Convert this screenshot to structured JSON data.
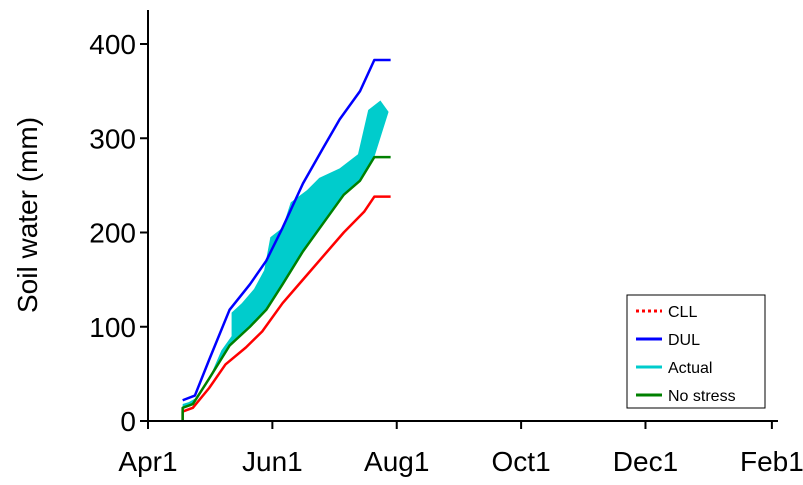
{
  "chart_data": {
    "type": "line",
    "title": "",
    "xlabel": "",
    "ylabel": "Soil water (mm)",
    "x_ticks": [
      "Apr1",
      "Jun1",
      "Aug1",
      "Oct1",
      "Dec1",
      "Feb1"
    ],
    "x_tick_days": [
      0,
      61,
      122,
      183,
      244,
      306
    ],
    "x_range_days": [
      0,
      309
    ],
    "y_ticks": [
      0,
      100,
      200,
      300,
      400
    ],
    "ylim": [
      0,
      400
    ],
    "grid": false,
    "legend_position": "bottom-right",
    "band": {
      "name": "Actual",
      "color": "#00cccc",
      "series_lower": "No stress",
      "upper_series": [
        {
          "day": 17,
          "value": 0
        },
        {
          "day": 17,
          "value": 18
        },
        {
          "day": 20,
          "value": 20
        },
        {
          "day": 24,
          "value": 25
        },
        {
          "day": 30,
          "value": 45
        },
        {
          "day": 36,
          "value": 75
        },
        {
          "day": 41,
          "value": 90
        },
        {
          "day": 41,
          "value": 115
        },
        {
          "day": 46,
          "value": 125
        },
        {
          "day": 52,
          "value": 140
        },
        {
          "day": 57,
          "value": 160
        },
        {
          "day": 60,
          "value": 195
        },
        {
          "day": 66,
          "value": 205
        },
        {
          "day": 70,
          "value": 232
        },
        {
          "day": 78,
          "value": 245
        },
        {
          "day": 84,
          "value": 258
        },
        {
          "day": 94,
          "value": 268
        },
        {
          "day": 103,
          "value": 283
        },
        {
          "day": 108,
          "value": 330
        },
        {
          "day": 114,
          "value": 340
        },
        {
          "day": 118,
          "value": 328
        }
      ]
    },
    "series": [
      {
        "name": "CLL",
        "color": "#ff0000",
        "style": "dotted",
        "points": [
          {
            "day": 17,
            "value": 0
          },
          {
            "day": 17,
            "value": 10
          },
          {
            "day": 22,
            "value": 14
          },
          {
            "day": 30,
            "value": 35
          },
          {
            "day": 38,
            "value": 60
          },
          {
            "day": 48,
            "value": 78
          },
          {
            "day": 56,
            "value": 95
          },
          {
            "day": 66,
            "value": 125
          },
          {
            "day": 76,
            "value": 150
          },
          {
            "day": 86,
            "value": 175
          },
          {
            "day": 96,
            "value": 200
          },
          {
            "day": 106,
            "value": 222
          },
          {
            "day": 111,
            "value": 238
          },
          {
            "day": 119,
            "value": 238
          }
        ]
      },
      {
        "name": "DUL",
        "color": "#0000ff",
        "style": "solid",
        "points": [
          {
            "day": 17,
            "value": 22
          },
          {
            "day": 23,
            "value": 27
          },
          {
            "day": 30,
            "value": 65
          },
          {
            "day": 40,
            "value": 118
          },
          {
            "day": 50,
            "value": 145
          },
          {
            "day": 58,
            "value": 170
          },
          {
            "day": 66,
            "value": 205
          },
          {
            "day": 76,
            "value": 252
          },
          {
            "day": 86,
            "value": 290
          },
          {
            "day": 94,
            "value": 320
          },
          {
            "day": 104,
            "value": 350
          },
          {
            "day": 111,
            "value": 383
          },
          {
            "day": 119,
            "value": 383
          }
        ]
      },
      {
        "name": "Actual",
        "color": "#00cccc",
        "style": "solid",
        "points": []
      },
      {
        "name": "No stress",
        "color": "#008000",
        "style": "solid",
        "points": [
          {
            "day": 17,
            "value": 0
          },
          {
            "day": 17,
            "value": 14
          },
          {
            "day": 22,
            "value": 18
          },
          {
            "day": 30,
            "value": 45
          },
          {
            "day": 40,
            "value": 80
          },
          {
            "day": 50,
            "value": 100
          },
          {
            "day": 58,
            "value": 118
          },
          {
            "day": 66,
            "value": 145
          },
          {
            "day": 76,
            "value": 180
          },
          {
            "day": 86,
            "value": 210
          },
          {
            "day": 96,
            "value": 240
          },
          {
            "day": 104,
            "value": 255
          },
          {
            "day": 111,
            "value": 280
          },
          {
            "day": 119,
            "value": 280
          }
        ]
      }
    ]
  }
}
